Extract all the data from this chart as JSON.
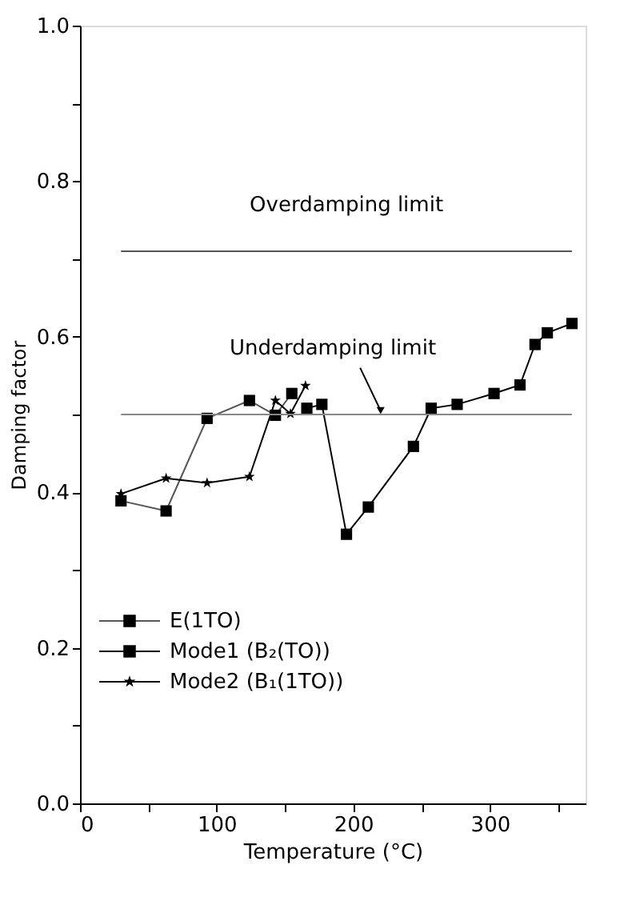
{
  "chart_data": {
    "type": "line",
    "xlabel": "Temperature (°C)",
    "ylabel": "Damping factor",
    "xlim": [
      0,
      370
    ],
    "xticks": [
      0,
      {
        "value": 50,
        "label": null
      },
      100,
      {
        "value": 150,
        "label": null
      },
      200,
      {
        "value": 250,
        "label": null
      },
      300,
      {
        "value": 350,
        "label": null
      }
    ],
    "ylim": [
      0,
      1.0
    ],
    "yticks": [
      {
        "value": 0,
        "label": "0.0"
      },
      {
        "value": 0.1,
        "label": null
      },
      0.2,
      {
        "value": 0.3,
        "label": null
      },
      0.4,
      {
        "value": 0.5,
        "label": null
      },
      0.6,
      {
        "value": 0.7,
        "label": null
      },
      0.8,
      {
        "value": 0.9,
        "label": null
      },
      {
        "value": 1.0,
        "label": "1.0"
      }
    ],
    "series": [
      {
        "name": "E(1TO)",
        "color": "#555555",
        "marker": "square",
        "x": [
          30,
          63,
          93,
          124,
          143,
          155
        ],
        "values": [
          0.389,
          0.376,
          0.495,
          0.518,
          0.499,
          0.527
        ]
      },
      {
        "name": "Mode1 (B₂(TO))",
        "color": "#000000",
        "marker": "square",
        "x": [
          166,
          177,
          195,
          211,
          244,
          257,
          276,
          303,
          322,
          333,
          342,
          360
        ],
        "values": [
          0.508,
          0.513,
          0.346,
          0.381,
          0.459,
          0.508,
          0.513,
          0.527,
          0.538,
          0.59,
          0.605,
          0.617
        ]
      },
      {
        "name": "Mode2 (B₁(1TO))",
        "color": "#000000",
        "marker": "star",
        "x": [
          30,
          63,
          93,
          124,
          143,
          154,
          165
        ],
        "values": [
          0.398,
          0.418,
          0.412,
          0.42,
          0.518,
          0.501,
          0.537
        ]
      }
    ],
    "ref_lines": [
      {
        "axis": "y",
        "value": 0.71,
        "label": "Overdamping limit",
        "color": "#555555"
      },
      {
        "axis": "y",
        "value": 0.5,
        "label": "Underdamping limit",
        "color": "#888888"
      }
    ],
    "line_style": "solid",
    "grid": false,
    "legend": "bottom left"
  }
}
